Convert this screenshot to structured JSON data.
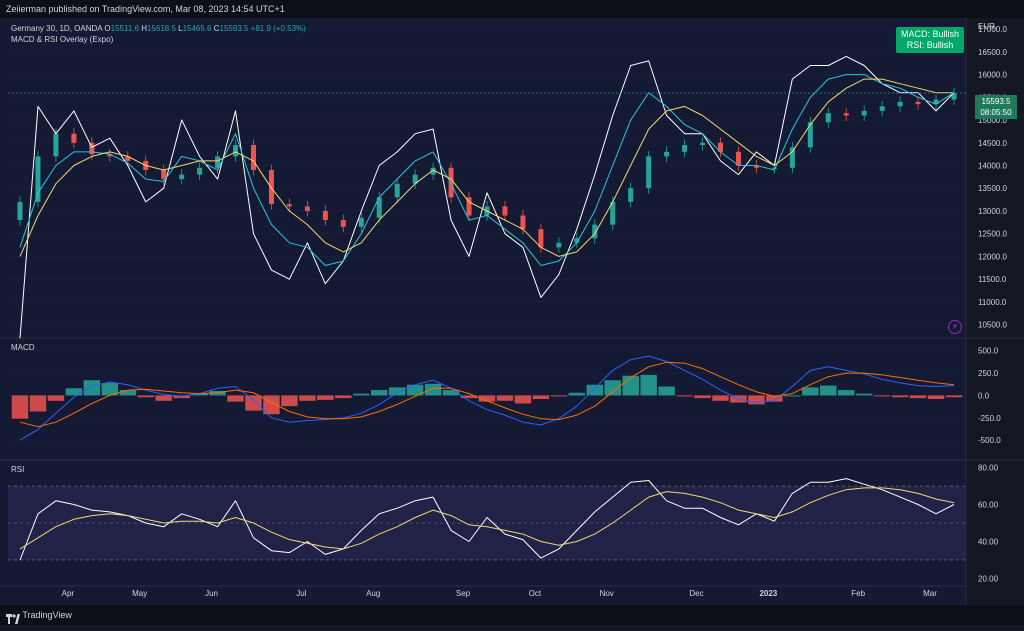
{
  "header": {
    "published_text": "Zeiierman published on TradingView.com, Mar 08, 2023 14:54 UTC+1"
  },
  "legend": {
    "symbol": "Germany 30, 1D, OANDA",
    "open_label": "O",
    "open": "15511.6",
    "high_label": "H",
    "high": "15618.5",
    "low_label": "L",
    "low": "15465.6",
    "close_label": "C",
    "close": "15593.5",
    "change": "+81.9 (+0.53%)",
    "indicator": "MACD & RSI Overlay (Expo)"
  },
  "signal_box": {
    "line1": "MACD: Bullish",
    "line2": "RSI: Bullish"
  },
  "price_tag": {
    "price": "15593.5",
    "countdown": "08:05:50"
  },
  "axis_currency": "EUR",
  "footer": {
    "brand": "TradingView"
  },
  "colors": {
    "up": "#26a69a",
    "down": "#ef5350",
    "rsi": "#ffffff",
    "ema_fast": "#26c6da",
    "ema_slow": "#f5d76e",
    "macd": "#2962ff",
    "signal": "#ff6d00",
    "signal_box": "#00a86b"
  },
  "chart_data": [
    {
      "type": "candlestick",
      "pane": "price",
      "title": "Germany 30, 1D, OANDA",
      "ylabel": "EUR",
      "yticks": [
        10500,
        11000,
        11500,
        12000,
        12500,
        13000,
        13500,
        14000,
        14500,
        15000,
        15500,
        16000,
        16500,
        17000
      ],
      "ylim": [
        10250,
        17200
      ],
      "x_ticks": [
        "Apr",
        "May",
        "Jun",
        "Jul",
        "Aug",
        "Sep",
        "Oct",
        "Nov",
        "Dec",
        "2023",
        "Feb",
        "Mar"
      ],
      "x": [
        "Mar-07",
        "Mar-14",
        "Mar-21",
        "Mar-28",
        "Apr-04",
        "Apr-11",
        "Apr-18",
        "Apr-25",
        "May-02",
        "May-09",
        "May-16",
        "May-23",
        "May-30",
        "Jun-06",
        "Jun-13",
        "Jun-20",
        "Jun-27",
        "Jul-04",
        "Jul-11",
        "Jul-18",
        "Jul-25",
        "Aug-01",
        "Aug-08",
        "Aug-15",
        "Aug-22",
        "Aug-29",
        "Sep-05",
        "Sep-12",
        "Sep-19",
        "Sep-26",
        "Oct-03",
        "Oct-10",
        "Oct-17",
        "Oct-24",
        "Oct-31",
        "Nov-07",
        "Nov-14",
        "Nov-21",
        "Nov-28",
        "Dec-05",
        "Dec-12",
        "Dec-19",
        "Dec-26",
        "Jan-02",
        "Jan-09",
        "Jan-16",
        "Jan-23",
        "Jan-30",
        "Feb-06",
        "Feb-13",
        "Feb-20",
        "Feb-27",
        "Mar-06"
      ],
      "close": [
        13200,
        14200,
        14700,
        14500,
        14250,
        14200,
        14100,
        13900,
        13700,
        13800,
        13950,
        14200,
        14450,
        13900,
        13150,
        13100,
        13000,
        12800,
        12650,
        12850,
        13300,
        13600,
        13800,
        13950,
        13300,
        12900,
        13100,
        12900,
        12600,
        12200,
        12300,
        12400,
        12700,
        13200,
        13500,
        14200,
        14300,
        14450,
        14500,
        14300,
        14000,
        13950,
        13950,
        14400,
        14950,
        15150,
        15100,
        15200,
        15300,
        15400,
        15350,
        15450,
        15593
      ]
    },
    {
      "type": "line",
      "pane": "price",
      "series": [
        {
          "name": "RSI overlay",
          "values": [
            10200,
            15300,
            14700,
            15200,
            14400,
            14600,
            14000,
            13200,
            13500,
            15000,
            14200,
            13700,
            15200,
            12500,
            11700,
            11500,
            12300,
            11400,
            11900,
            13000,
            14000,
            14300,
            14700,
            14800,
            12800,
            12000,
            13400,
            12500,
            12200,
            11100,
            11600,
            12600,
            13800,
            15100,
            16200,
            16300,
            15100,
            14700,
            14700,
            14100,
            13800,
            14300,
            14000,
            15900,
            16200,
            16200,
            16400,
            16200,
            15800,
            15600,
            15600,
            15200,
            15600
          ]
        },
        {
          "name": "EMA fast",
          "values": [
            12200,
            13400,
            14000,
            14300,
            14300,
            14250,
            14050,
            13700,
            13650,
            14200,
            14100,
            13900,
            14700,
            13500,
            12700,
            12300,
            12200,
            11800,
            11900,
            12500,
            13300,
            13700,
            14100,
            14300,
            13600,
            12800,
            12900,
            12600,
            12300,
            11800,
            11900,
            12300,
            13000,
            14000,
            15000,
            15600,
            15300,
            14900,
            14700,
            14300,
            14000,
            14000,
            13900,
            14800,
            15500,
            15900,
            16000,
            16000,
            15800,
            15700,
            15500,
            15350,
            15600
          ]
        },
        {
          "name": "EMA slow",
          "values": [
            12000,
            12900,
            13600,
            14000,
            14200,
            14300,
            14200,
            14000,
            13900,
            14000,
            14100,
            14100,
            14300,
            14100,
            13500,
            13000,
            12700,
            12300,
            12100,
            12300,
            12800,
            13200,
            13600,
            13900,
            13700,
            13200,
            13000,
            12800,
            12600,
            12200,
            12000,
            12100,
            12500,
            13200,
            14000,
            14800,
            15200,
            15300,
            15100,
            14800,
            14500,
            14200,
            14000,
            14300,
            14900,
            15400,
            15700,
            15900,
            15900,
            15800,
            15700,
            15600,
            15600
          ]
        }
      ]
    },
    {
      "type": "bar",
      "pane": "MACD",
      "title": "MACD",
      "yticks": [
        -500,
        -250,
        0,
        250,
        500
      ],
      "ylim": [
        -700,
        620
      ],
      "histogram": [
        -260,
        -180,
        -60,
        80,
        170,
        140,
        60,
        -20,
        -60,
        -30,
        20,
        50,
        -70,
        -170,
        -210,
        -120,
        -60,
        -50,
        -30,
        20,
        60,
        90,
        120,
        130,
        60,
        -30,
        -70,
        -60,
        -90,
        -40,
        -10,
        30,
        120,
        170,
        220,
        230,
        100,
        -10,
        -30,
        -60,
        -80,
        -100,
        -70,
        0,
        90,
        110,
        60,
        20,
        -10,
        -20,
        -30,
        -40,
        -20
      ],
      "series": [
        {
          "name": "MACD",
          "values": [
            -500,
            -380,
            -200,
            -20,
            100,
            150,
            120,
            60,
            10,
            -10,
            20,
            80,
            100,
            -50,
            -250,
            -300,
            -280,
            -270,
            -250,
            -200,
            -100,
            30,
            120,
            170,
            80,
            -60,
            -160,
            -220,
            -300,
            -330,
            -260,
            -120,
            80,
            280,
            400,
            440,
            380,
            280,
            180,
            60,
            -40,
            -80,
            -60,
            100,
            280,
            320,
            280,
            240,
            180,
            140,
            110,
            100,
            110
          ]
        },
        {
          "name": "Signal",
          "values": [
            -300,
            -350,
            -300,
            -200,
            -90,
            0,
            60,
            70,
            50,
            30,
            20,
            30,
            60,
            30,
            -80,
            -180,
            -240,
            -260,
            -260,
            -240,
            -180,
            -100,
            -10,
            80,
            80,
            20,
            -60,
            -140,
            -210,
            -260,
            -270,
            -220,
            -120,
            40,
            200,
            320,
            370,
            360,
            300,
            210,
            120,
            40,
            -10,
            20,
            120,
            210,
            250,
            250,
            230,
            200,
            170,
            140,
            120
          ]
        }
      ]
    },
    {
      "type": "line",
      "pane": "RSI",
      "title": "RSI",
      "yticks": [
        20,
        40,
        60,
        80
      ],
      "ylim": [
        17,
        83
      ],
      "bands": [
        30,
        50,
        70
      ],
      "series": [
        {
          "name": "RSI",
          "values": [
            30,
            55,
            62,
            60,
            57,
            56,
            54,
            50,
            48,
            55,
            52,
            48,
            62,
            42,
            35,
            34,
            40,
            33,
            36,
            46,
            55,
            58,
            62,
            64,
            46,
            40,
            53,
            44,
            41,
            31,
            36,
            46,
            56,
            64,
            72,
            73,
            62,
            58,
            58,
            53,
            49,
            55,
            51,
            66,
            72,
            72,
            74,
            71,
            68,
            64,
            60,
            55,
            60
          ]
        },
        {
          "name": "RSI MA",
          "values": [
            36,
            42,
            48,
            52,
            54,
            55,
            54,
            52,
            50,
            51,
            51,
            50,
            53,
            50,
            45,
            41,
            39,
            37,
            36,
            39,
            44,
            48,
            53,
            57,
            54,
            49,
            48,
            46,
            44,
            40,
            38,
            40,
            44,
            50,
            57,
            64,
            67,
            66,
            64,
            61,
            57,
            55,
            53,
            56,
            61,
            65,
            68,
            69,
            69,
            68,
            66,
            63,
            61
          ]
        }
      ]
    }
  ]
}
